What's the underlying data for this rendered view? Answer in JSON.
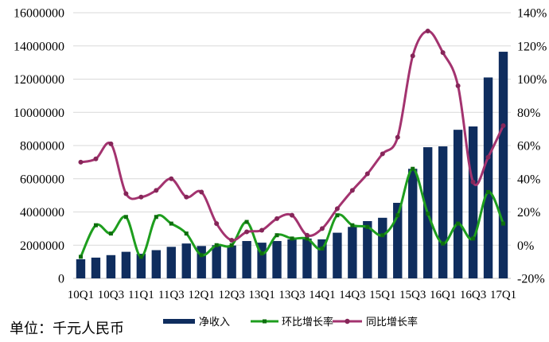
{
  "note": "单位：千元人民币",
  "chart_data": {
    "type": "bar",
    "title": "",
    "x_tick_labels": [
      "10Q1",
      "10Q3",
      "11Q1",
      "11Q3",
      "12Q1",
      "12Q3",
      "13Q1",
      "13Q3",
      "14Q1",
      "14Q3",
      "15Q1",
      "15Q3",
      "16Q1",
      "16Q3",
      "17Q1"
    ],
    "x_tick_every": 2,
    "y_left": {
      "min": 0,
      "max": 16000000,
      "tick_labels": [
        "0",
        "2000000",
        "4000000",
        "6000000",
        "8000000",
        "10000000",
        "12000000",
        "14000000",
        "16000000"
      ]
    },
    "y_right": {
      "min": -20,
      "max": 140,
      "tick_labels": [
        "-20%",
        "0%",
        "20%",
        "40%",
        "60%",
        "80%",
        "100%",
        "120%",
        "140%"
      ]
    },
    "grid": true,
    "legend": {
      "position": "bottom"
    },
    "series": [
      {
        "name": "净收入",
        "type": "bar",
        "axis": "left",
        "color": "#0f2d5e",
        "values": [
          1150000,
          1250000,
          1400000,
          1600000,
          1480000,
          1700000,
          1900000,
          2100000,
          1950000,
          2000000,
          1980000,
          2250000,
          2150000,
          2250000,
          2350000,
          2400000,
          2350000,
          2750000,
          3100000,
          3450000,
          3650000,
          4550000,
          6600000,
          7900000,
          7950000,
          8950000,
          9150000,
          12100000,
          13650000
        ]
      },
      {
        "name": "环比增长率",
        "type": "line",
        "axis": "right",
        "marker": "square",
        "color": "#1e9e1e",
        "marker_color": "#0d6e0d",
        "values": [
          -7,
          12,
          7,
          17,
          -7,
          17,
          13,
          7,
          -6,
          0,
          0,
          14,
          -5,
          6,
          4,
          4,
          -2,
          18,
          12,
          11,
          6,
          18,
          46,
          19,
          1,
          13,
          4,
          32,
          13
        ]
      },
      {
        "name": "同比增长率",
        "type": "line",
        "axis": "right",
        "marker": "circle",
        "color": "#a3336f",
        "marker_color": "#862659",
        "values": [
          50,
          52,
          61,
          31,
          29,
          33,
          40,
          29,
          32,
          13,
          3,
          8,
          9,
          16,
          18,
          6,
          10,
          22,
          33,
          43,
          55,
          65,
          114,
          129,
          116,
          96,
          38,
          53,
          72
        ]
      }
    ]
  }
}
